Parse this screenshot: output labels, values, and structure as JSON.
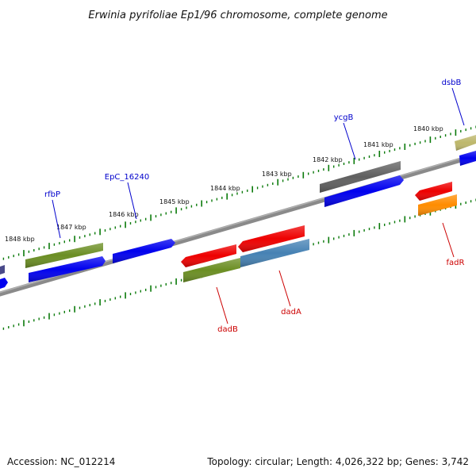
{
  "title": "Erwinia pyrifoliae Ep1/96 chromosome, complete genome",
  "footer": {
    "accession": "Accession: NC_012214",
    "summary": "Topology: circular; Length: 4,026,322 bp; Genes: 3,742"
  },
  "scale_labels": [
    "1848 kbp",
    "1847 kbp",
    "1846 kbp",
    "1845 kbp",
    "1844 kbp",
    "1843 kbp",
    "1842 kbp",
    "1841 kbp",
    "1840 kbp"
  ],
  "gene_labels": {
    "forward": [
      "rfbP",
      "EpC_16240",
      "ycgB",
      "dsbB"
    ],
    "reverse": [
      "dadB",
      "dadA",
      "fadR"
    ]
  },
  "colors": {
    "blue": "#0000ee",
    "olive": "#6b8e23",
    "red": "#ee0000",
    "steel": "#4682b4",
    "gray": "#606060",
    "khaki": "#bdb76b",
    "orange": "#ff8c00",
    "tick": "#0a7a0a",
    "backbone": "#8a8a8a",
    "label_blue": "#0000cc",
    "label_red": "#cc0000"
  }
}
